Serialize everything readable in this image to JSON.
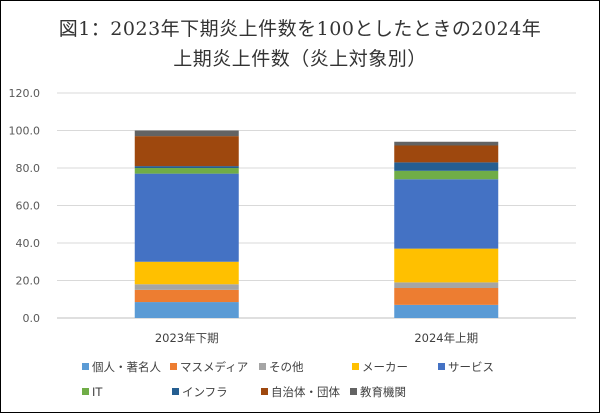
{
  "chart_data": {
    "type": "bar",
    "stacked": true,
    "title": "図1：2023年下期炎上件数を100としたときの2024年",
    "subtitle": "上期炎上件数（炎上対象別）",
    "categories": [
      "2023年下期",
      "2024年上期"
    ],
    "ylim": [
      0,
      120
    ],
    "yticks": [
      "0.0",
      "20.0",
      "40.0",
      "60.0",
      "80.0",
      "100.0",
      "120.0"
    ],
    "grid": true,
    "legend_position": "bottom",
    "series": [
      {
        "name": "個人・著名人",
        "color": "#5B9BD5",
        "values": [
          8.5,
          7.0
        ]
      },
      {
        "name": "マスメディア",
        "color": "#ED7D31",
        "values": [
          6.5,
          9.0
        ]
      },
      {
        "name": "その他",
        "color": "#A5A5A5",
        "values": [
          3.0,
          3.0
        ]
      },
      {
        "name": "メーカー",
        "color": "#FFC000",
        "values": [
          12.0,
          18.0
        ]
      },
      {
        "name": "サービス",
        "color": "#4472C4",
        "values": [
          47.0,
          37.0
        ]
      },
      {
        "name": "IT",
        "color": "#70AD47",
        "values": [
          3.0,
          4.5
        ]
      },
      {
        "name": "インフラ",
        "color": "#255E91",
        "values": [
          1.0,
          4.5
        ]
      },
      {
        "name": "自治体・団体",
        "color": "#9E480E",
        "values": [
          16.0,
          9.0
        ]
      },
      {
        "name": "教育機関",
        "color": "#636363",
        "values": [
          3.0,
          2.0
        ]
      }
    ]
  }
}
